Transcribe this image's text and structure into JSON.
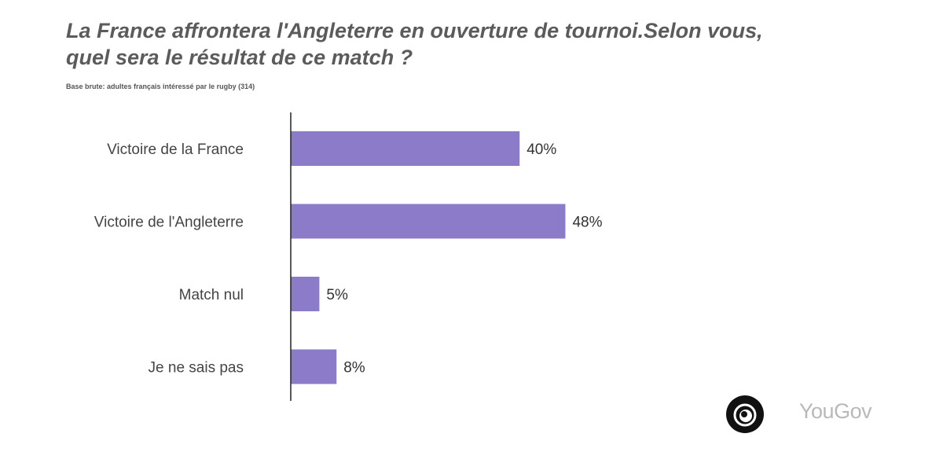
{
  "title_line1": "La France affrontera l'Angleterre en ouverture de tournoi.Selon vous,",
  "title_line2": "quel sera le résultat de ce match ?",
  "base_note": "Base brute: adultes français intéressé par le rugby (314)",
  "brand": "YouGov",
  "colors": {
    "bar": "#8b7bc8",
    "axis": "#222222",
    "title": "#5b5b5b",
    "brand": "#b9b9b9"
  },
  "chart_data": {
    "type": "bar",
    "orientation": "horizontal",
    "categories": [
      "Victoire de la France",
      "Victoire de l'Angleterre",
      "Match nul",
      "Je ne sais pas"
    ],
    "values": [
      40,
      48,
      5,
      8
    ],
    "value_labels": [
      "40%",
      "48%",
      "5%",
      "8%"
    ],
    "unit": "%",
    "xlim": [
      0,
      100
    ],
    "grid": false,
    "legend": "none"
  }
}
